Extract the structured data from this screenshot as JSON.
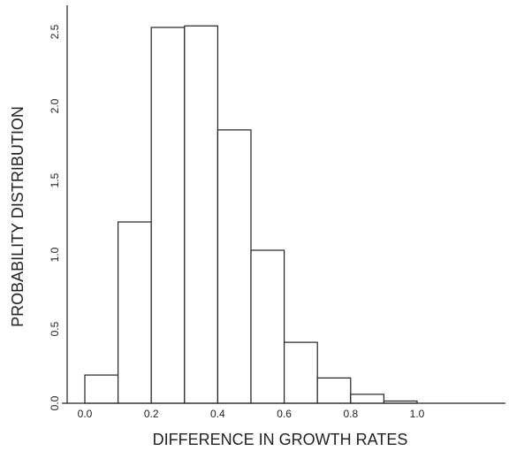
{
  "chart_data": {
    "type": "bar",
    "histogram": true,
    "bins": [
      {
        "x0": 0.0,
        "x1": 0.1,
        "value": 0.19
      },
      {
        "x0": 0.1,
        "x1": 0.2,
        "value": 1.22
      },
      {
        "x0": 0.2,
        "x1": 0.3,
        "value": 2.53
      },
      {
        "x0": 0.3,
        "x1": 0.4,
        "value": 2.54
      },
      {
        "x0": 0.4,
        "x1": 0.5,
        "value": 1.84
      },
      {
        "x0": 0.5,
        "x1": 0.6,
        "value": 1.03
      },
      {
        "x0": 0.6,
        "x1": 0.7,
        "value": 0.41
      },
      {
        "x0": 0.7,
        "x1": 0.8,
        "value": 0.17
      },
      {
        "x0": 0.8,
        "x1": 0.9,
        "value": 0.06
      },
      {
        "x0": 0.9,
        "x1": 1.0,
        "value": 0.015
      }
    ],
    "xlabel": "DIFFERENCE IN GROWTH RATES",
    "ylabel": "PROBABILITY DISTRIBUTION",
    "xlim": [
      0.0,
      1.5
    ],
    "ylim": [
      0.0,
      2.6
    ],
    "x_ticks": [
      {
        "value": 0.0,
        "label": "0.0"
      },
      {
        "value": 0.2,
        "label": "0.2"
      },
      {
        "value": 0.4,
        "label": "0.4"
      },
      {
        "value": 0.6,
        "label": "0.6"
      },
      {
        "value": 0.8,
        "label": "0.8"
      },
      {
        "value": 1.0,
        "label": "1.0"
      }
    ],
    "y_ticks": [
      {
        "value": 0.0,
        "label": "0.0"
      },
      {
        "value": 0.5,
        "label": "0.5"
      },
      {
        "value": 1.0,
        "label": "1.0"
      },
      {
        "value": 1.5,
        "label": "1.5"
      },
      {
        "value": 2.0,
        "label": "2.0"
      },
      {
        "value": 2.5,
        "label": "2.5"
      }
    ],
    "grid": false
  }
}
